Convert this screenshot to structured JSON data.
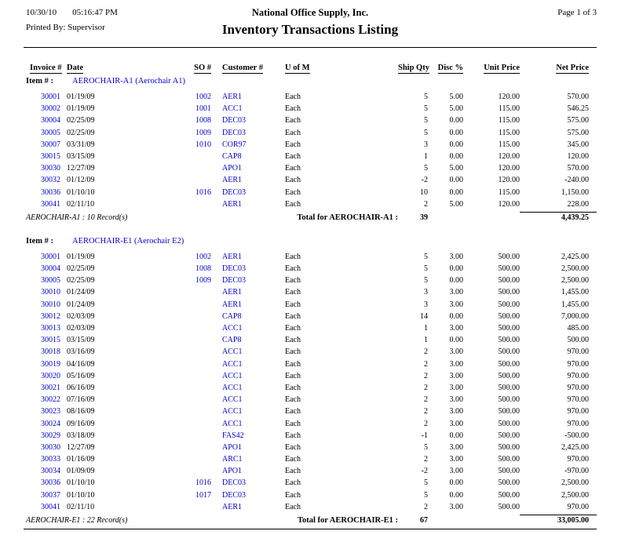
{
  "header": {
    "date": "10/30/10",
    "time": "05:16:47 PM",
    "company": "National Office Supply, Inc.",
    "page": "Page 1 of  3",
    "printed_by": "Printed By: Supervisor",
    "title": "Inventory Transactions Listing"
  },
  "columns": [
    "Invoice #",
    "Date",
    "SO #",
    "Customer #",
    "U of M",
    "Ship Qty",
    "Disc %",
    "Unit Price",
    "Net Price"
  ],
  "item_prefix": "Item # :",
  "colors": {
    "link_blue": "#0000cc"
  },
  "groups": [
    {
      "item_name": "AEROCHAIR-A1 (Aerochair A1)",
      "rows": [
        [
          "30001",
          "01/19/09",
          "1002",
          "AER1",
          "Each",
          "5",
          "5.00",
          "120.00",
          "570.00"
        ],
        [
          "30002",
          "01/19/09",
          "1001",
          "ACC1",
          "Each",
          "5",
          "5.00",
          "115.00",
          "546.25"
        ],
        [
          "30004",
          "02/25/09",
          "1008",
          "DEC03",
          "Each",
          "5",
          "0.00",
          "115.00",
          "575.00"
        ],
        [
          "30005",
          "02/25/09",
          "1009",
          "DEC03",
          "Each",
          "5",
          "0.00",
          "115.00",
          "575.00"
        ],
        [
          "30007",
          "03/31/09",
          "1010",
          "COR97",
          "Each",
          "3",
          "0.00",
          "115.00",
          "345.00"
        ],
        [
          "30015",
          "03/15/09",
          "",
          "CAP8",
          "Each",
          "1",
          "0.00",
          "120.00",
          "120.00"
        ],
        [
          "30030",
          "12/27/09",
          "",
          "APO1",
          "Each",
          "5",
          "5.00",
          "120.00",
          "570.00"
        ],
        [
          "30032",
          "01/12/09",
          "",
          "AER1",
          "Each",
          "-2",
          "0.00",
          "120.00",
          "-240.00"
        ],
        [
          "30036",
          "01/10/10",
          "1016",
          "DEC03",
          "Each",
          "10",
          "0.00",
          "115.00",
          "1,150.00"
        ],
        [
          "30041",
          "02/11/10",
          "",
          "AER1",
          "Each",
          "2",
          "5.00",
          "120.00",
          "228.00"
        ]
      ],
      "record_count_text": "AEROCHAIR-A1 : 10 Record(s)",
      "total_label": "Total for AEROCHAIR-A1 :",
      "total_qty": "39",
      "total_net": "4,439.25"
    },
    {
      "item_name": "AEROCHAIR-E1 (Aerochair E2)",
      "rows": [
        [
          "30001",
          "01/19/09",
          "1002",
          "AER1",
          "Each",
          "5",
          "3.00",
          "500.00",
          "2,425.00"
        ],
        [
          "30004",
          "02/25/09",
          "1008",
          "DEC03",
          "Each",
          "5",
          "0.00",
          "500.00",
          "2,500.00"
        ],
        [
          "30005",
          "02/25/09",
          "1009",
          "DEC03",
          "Each",
          "5",
          "0.00",
          "500.00",
          "2,500.00"
        ],
        [
          "30010",
          "01/24/09",
          "",
          "AER1",
          "Each",
          "3",
          "3.00",
          "500.00",
          "1,455.00"
        ],
        [
          "30010",
          "01/24/09",
          "",
          "AER1",
          "Each",
          "3",
          "3.00",
          "500.00",
          "1,455.00"
        ],
        [
          "30012",
          "02/03/09",
          "",
          "CAP8",
          "Each",
          "14",
          "0.00",
          "500.00",
          "7,000.00"
        ],
        [
          "30013",
          "02/03/09",
          "",
          "ACC1",
          "Each",
          "1",
          "3.00",
          "500.00",
          "485.00"
        ],
        [
          "30015",
          "03/15/09",
          "",
          "CAP8",
          "Each",
          "1",
          "0.00",
          "500.00",
          "500.00"
        ],
        [
          "30018",
          "03/16/09",
          "",
          "ACC1",
          "Each",
          "2",
          "3.00",
          "500.00",
          "970.00"
        ],
        [
          "30019",
          "04/16/09",
          "",
          "ACC1",
          "Each",
          "2",
          "3.00",
          "500.00",
          "970.00"
        ],
        [
          "30020",
          "05/16/09",
          "",
          "ACC1",
          "Each",
          "2",
          "3.00",
          "500.00",
          "970.00"
        ],
        [
          "30021",
          "06/16/09",
          "",
          "ACC1",
          "Each",
          "2",
          "3.00",
          "500.00",
          "970.00"
        ],
        [
          "30022",
          "07/16/09",
          "",
          "ACC1",
          "Each",
          "2",
          "3.00",
          "500.00",
          "970.00"
        ],
        [
          "30023",
          "08/16/09",
          "",
          "ACC1",
          "Each",
          "2",
          "3.00",
          "500.00",
          "970.00"
        ],
        [
          "30024",
          "09/16/09",
          "",
          "ACC1",
          "Each",
          "2",
          "3.00",
          "500.00",
          "970.00"
        ],
        [
          "30029",
          "03/18/09",
          "",
          "FAS42",
          "Each",
          "-1",
          "0.00",
          "500.00",
          "-500.00"
        ],
        [
          "30030",
          "12/27/09",
          "",
          "APO1",
          "Each",
          "5",
          "3.00",
          "500.00",
          "2,425.00"
        ],
        [
          "30033",
          "01/16/09",
          "",
          "ARC1",
          "Each",
          "2",
          "3.00",
          "500.00",
          "970.00"
        ],
        [
          "30034",
          "01/09/09",
          "",
          "APO1",
          "Each",
          "-2",
          "3.00",
          "500.00",
          "-970.00"
        ],
        [
          "30036",
          "01/10/10",
          "1016",
          "DEC03",
          "Each",
          "5",
          "0.00",
          "500.00",
          "2,500.00"
        ],
        [
          "30037",
          "01/10/10",
          "1017",
          "DEC03",
          "Each",
          "5",
          "0.00",
          "500.00",
          "2,500.00"
        ],
        [
          "30041",
          "02/11/10",
          "",
          "AER1",
          "Each",
          "2",
          "3.00",
          "500.00",
          "970.00"
        ]
      ],
      "record_count_text": "AEROCHAIR-E1 : 22 Record(s)",
      "total_label": "Total for AEROCHAIR-E1 :",
      "total_qty": "67",
      "total_net": "33,005.00"
    }
  ]
}
